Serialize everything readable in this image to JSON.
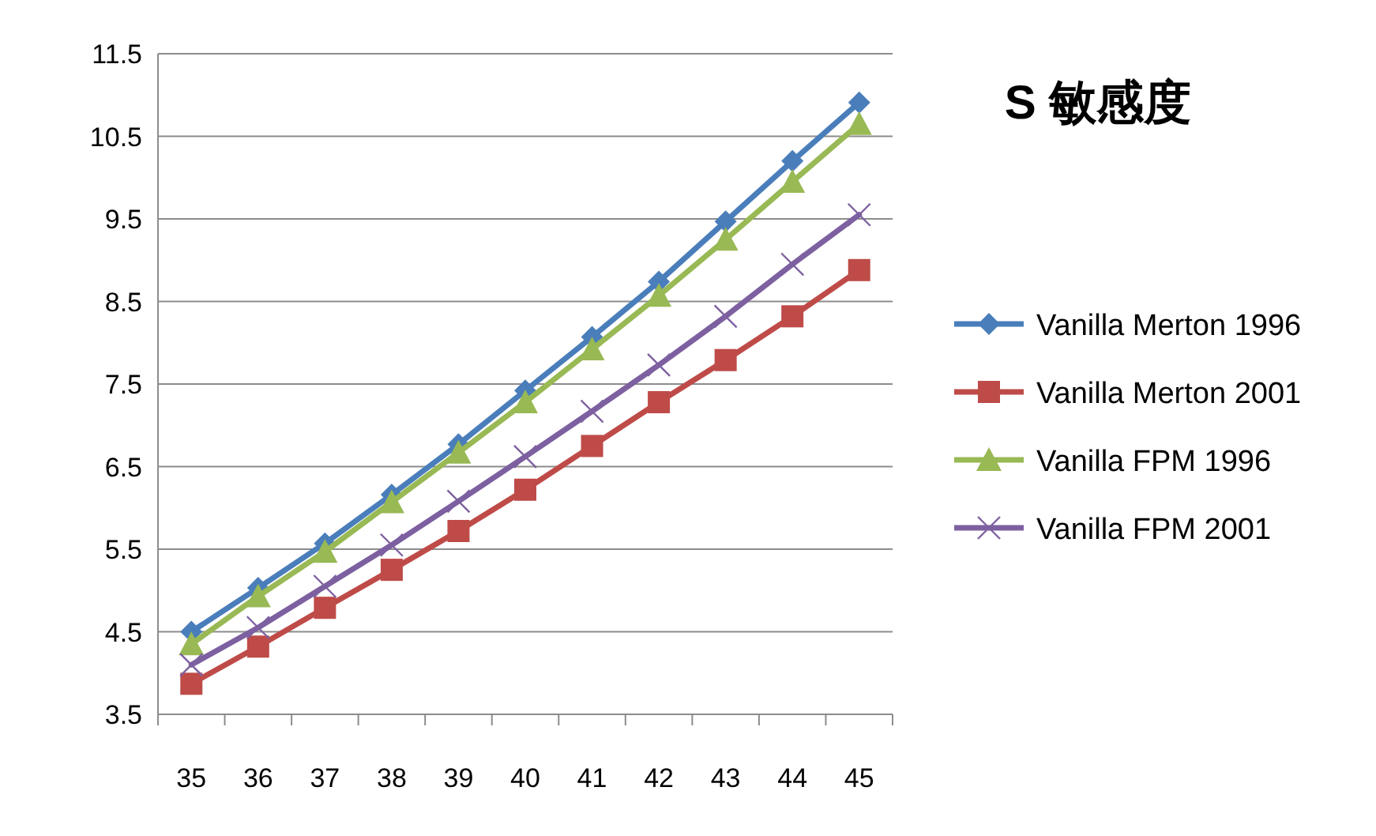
{
  "chart_data": {
    "type": "line",
    "title": "S 敏感度",
    "categories": [
      "35",
      "36",
      "37",
      "38",
      "39",
      "40",
      "41",
      "42",
      "43",
      "44",
      "45"
    ],
    "series": [
      {
        "name": "Vanilla Merton 1996",
        "color": "#4a7ebb",
        "marker": "diamond",
        "values": [
          4.5,
          5.03,
          5.57,
          6.16,
          6.77,
          7.42,
          8.07,
          8.74,
          9.47,
          10.2,
          10.91
        ]
      },
      {
        "name": "Vanilla Merton 2001",
        "color": "#be4b48",
        "marker": "square",
        "values": [
          3.87,
          4.32,
          4.79,
          5.25,
          5.72,
          6.22,
          6.75,
          7.28,
          7.79,
          8.32,
          8.88
        ]
      },
      {
        "name": "Vanilla FPM 1996",
        "color": "#98b954",
        "marker": "triangle",
        "values": [
          4.35,
          4.93,
          5.47,
          6.07,
          6.67,
          7.28,
          7.92,
          8.57,
          9.25,
          9.95,
          10.65
        ]
      },
      {
        "name": "Vanilla FPM 2001",
        "color": "#7d60a0",
        "marker": "cross",
        "values": [
          4.1,
          4.55,
          5.05,
          5.55,
          6.08,
          6.62,
          7.17,
          7.73,
          8.32,
          8.95,
          9.55
        ]
      }
    ],
    "ylim": [
      3.5,
      11.5
    ],
    "yticks": [
      3.5,
      4.5,
      5.5,
      6.5,
      7.5,
      8.5,
      9.5,
      10.5,
      11.5
    ],
    "grid": "y",
    "legend": "right"
  }
}
